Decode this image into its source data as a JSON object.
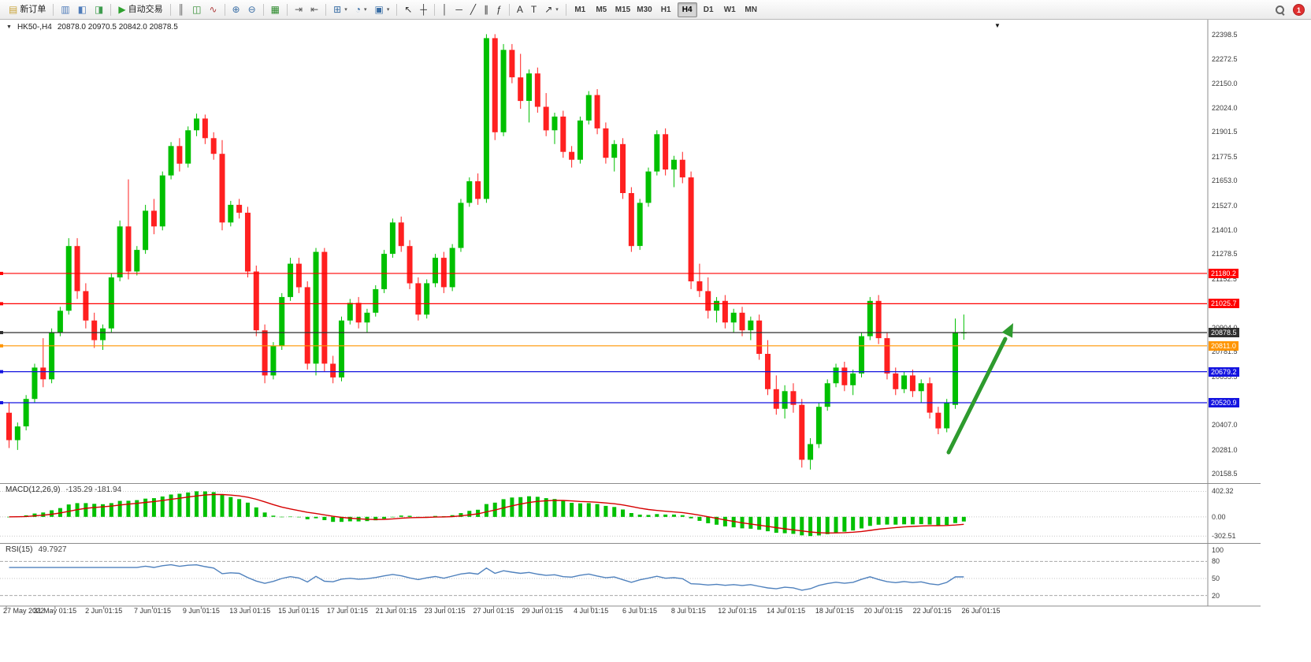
{
  "toolbar": {
    "groups": [
      [
        {
          "name": "new-order-button",
          "label": "新订单",
          "glyph": "▤",
          "color": "#caa53d"
        }
      ],
      [
        {
          "name": "market-watch-icon",
          "glyph": "▥",
          "color": "#4f7cba"
        },
        {
          "name": "data-window-icon",
          "glyph": "◧",
          "color": "#4f7cba"
        },
        {
          "name": "navigator-icon",
          "glyph": "◨",
          "color": "#3f9c4f"
        }
      ],
      [
        {
          "name": "auto-trading-button",
          "label": "自动交易",
          "glyph": "▶",
          "color": "#2ea12e"
        }
      ],
      [
        {
          "name": "bar-chart-icon",
          "glyph": "║",
          "color": "#555555"
        },
        {
          "name": "candlestick-chart-icon",
          "glyph": "◫",
          "color": "#2e8b2e"
        },
        {
          "name": "line-chart-icon",
          "glyph": "∿",
          "color": "#b04040"
        }
      ],
      [
        {
          "name": "zoom-in-icon",
          "glyph": "⊕",
          "color": "#3a6ea5"
        },
        {
          "name": "zoom-out-icon",
          "glyph": "⊖",
          "color": "#3a6ea5"
        }
      ],
      [
        {
          "name": "tile-windows-icon",
          "glyph": "▦",
          "color": "#2e8b2e"
        }
      ],
      [
        {
          "name": "auto-scroll-icon",
          "glyph": "⇥",
          "color": "#555555"
        },
        {
          "name": "chart-shift-icon",
          "glyph": "⇤",
          "color": "#555555"
        }
      ],
      [
        {
          "name": "new-chart-icon",
          "glyph": "⊞",
          "color": "#3a6ea5",
          "caret": true
        },
        {
          "name": "period-icon",
          "glyph": "◔",
          "color": "#3a6ea5",
          "caret": true
        },
        {
          "name": "template-icon",
          "glyph": "▣",
          "color": "#3a6ea5",
          "caret": true
        }
      ],
      [
        {
          "name": "cursor-icon",
          "glyph": "↖",
          "color": "#333333"
        },
        {
          "name": "crosshair-icon",
          "glyph": "┼",
          "color": "#333333"
        }
      ],
      [
        {
          "name": "vertical-line-icon",
          "glyph": "│",
          "color": "#333333"
        },
        {
          "name": "horizontal-line-icon",
          "glyph": "─",
          "color": "#333333"
        },
        {
          "name": "trendline-icon",
          "glyph": "╱",
          "color": "#333333"
        },
        {
          "name": "channel-icon",
          "glyph": "∥",
          "color": "#333333"
        },
        {
          "name": "fibonacci-icon",
          "glyph": "ƒ",
          "color": "#333333"
        }
      ],
      [
        {
          "name": "text-icon",
          "glyph": "A",
          "color": "#333333"
        },
        {
          "name": "label-icon",
          "glyph": "T",
          "color": "#333333"
        },
        {
          "name": "arrows-icon",
          "glyph": "↗",
          "color": "#333333",
          "caret": true
        }
      ]
    ],
    "timeframes": [
      "M1",
      "M5",
      "M15",
      "M30",
      "H1",
      "H4",
      "D1",
      "W1",
      "MN"
    ],
    "active_timeframe": "H4",
    "notification_count": "1"
  },
  "chart": {
    "title": "HK50-,H4",
    "ohlc_text": "20878.0 20970.5 20842.0 20878.5",
    "collapse_icon": "▼",
    "menu_icon": "▼",
    "colors": {
      "up": "#00c000",
      "down": "#ff2020",
      "macd_histogram": "#00c000",
      "macd_signal": "#d60000",
      "rsi_line": "#4f81bd",
      "arrow": "#2e9b2e",
      "axis_text": "#3a3a3a"
    },
    "price_lines": [
      {
        "value": 21180.2,
        "label": "21180.2",
        "color": "#ff0000",
        "type": "horizontal-line"
      },
      {
        "value": 21025.7,
        "label": "21025.7",
        "color": "#ff0000",
        "type": "horizontal-line"
      },
      {
        "value": 20878.5,
        "label": "20878.5",
        "color": "#2f2f2f",
        "type": "bid"
      },
      {
        "value": 20811.0,
        "label": "20811.0",
        "color": "#ff9500",
        "type": "horizontal-line"
      },
      {
        "value": 20679.2,
        "label": "20679.2",
        "color": "#1414e0",
        "type": "horizontal-line"
      },
      {
        "value": 20520.9,
        "label": "20520.9",
        "color": "#1414e0",
        "type": "horizontal-line"
      }
    ],
    "price_axis_labels": [
      "22398.5",
      "22272.5",
      "22150.0",
      "22024.0",
      "21901.5",
      "21775.5",
      "21653.0",
      "21527.0",
      "21401.0",
      "21278.5",
      "21152.5",
      "20904.0",
      "20781.5",
      "20655.5",
      "20407.0",
      "20281.0",
      "20158.5"
    ],
    "time_axis_labels": [
      "27 May 2022",
      "31 May 01:15",
      "2 Jun 01:15",
      "7 Jun 01:15",
      "9 Jun 01:15",
      "13 Jun 01:15",
      "15 Jun 01:15",
      "17 Jun 01:15",
      "21 Jun 01:15",
      "23 Jun 01:15",
      "27 Jun 01:15",
      "29 Jun 01:15",
      "4 Jul 01:15",
      "6 Jul 01:15",
      "8 Jul 01:15",
      "12 Jul 01:15",
      "14 Jul 01:15",
      "18 Jul 01:15",
      "20 Jul 01:15",
      "22 Jul 01:15",
      "26 Jul 01:15"
    ]
  },
  "macd_panel": {
    "title": "MACD(12,26,9)",
    "values": "-135.29 -181.94",
    "axis_labels": [
      "402.32",
      "0.00",
      "-302.51"
    ]
  },
  "rsi_panel": {
    "title": "RSI(15)",
    "value": "49.7927",
    "axis_labels": [
      "100",
      "80",
      "50",
      "20"
    ],
    "levels": [
      80,
      50,
      20
    ]
  },
  "chart_data": {
    "type": "candlestick",
    "symbol": "HK50-",
    "timeframe": "H4",
    "current_bar": {
      "open": 20878.0,
      "high": 20970.5,
      "low": 20842.0,
      "close": 20878.5
    },
    "visible_price_range": [
      20158.5,
      22398.5
    ],
    "y_ticks": [
      22398.5,
      22272.5,
      22150.0,
      22024.0,
      21901.5,
      21775.5,
      21653.0,
      21527.0,
      21401.0,
      21278.5,
      21152.5,
      20904.0,
      20781.5,
      20655.5,
      20407.0,
      20281.0,
      20158.5
    ],
    "x_labels": [
      "27 May 2022",
      "31 May 01:15",
      "2 Jun 01:15",
      "7 Jun 01:15",
      "9 Jun 01:15",
      "13 Jun 01:15",
      "15 Jun 01:15",
      "17 Jun 01:15",
      "21 Jun 01:15",
      "23 Jun 01:15",
      "27 Jun 01:15",
      "29 Jun 01:15",
      "4 Jul 01:15",
      "6 Jul 01:15",
      "8 Jul 01:15",
      "12 Jul 01:15",
      "14 Jul 01:15",
      "18 Jul 01:15",
      "20 Jul 01:15",
      "22 Jul 01:15",
      "26 Jul 01:15"
    ],
    "horizontal_lines": [
      21180.2,
      21025.7,
      20878.5,
      20811.0,
      20679.2,
      20520.9
    ],
    "indicators": [
      {
        "name": "MACD",
        "params": [
          12,
          26,
          9
        ],
        "values": [
          -135.29,
          -181.94
        ],
        "scale": [
          -302.51,
          402.32
        ]
      },
      {
        "name": "RSI",
        "params": [
          15
        ],
        "value": 49.7927,
        "levels": [
          80,
          50,
          20
        ]
      }
    ],
    "annotations": [
      {
        "type": "arrow",
        "direction": "up-right",
        "color": "#2e9b2e"
      }
    ],
    "candles": [
      [
        20470,
        20520,
        20290,
        20330
      ],
      [
        20330,
        20420,
        20280,
        20400
      ],
      [
        20400,
        20560,
        20380,
        20540
      ],
      [
        20540,
        20720,
        20520,
        20700
      ],
      [
        20700,
        20850,
        20600,
        20640
      ],
      [
        20640,
        20900,
        20620,
        20880
      ],
      [
        20880,
        21010,
        20860,
        20990
      ],
      [
        20990,
        21360,
        20970,
        21320
      ],
      [
        21320,
        21360,
        21050,
        21090
      ],
      [
        21090,
        21130,
        20900,
        20940
      ],
      [
        20940,
        20980,
        20800,
        20840
      ],
      [
        20840,
        20920,
        20790,
        20900
      ],
      [
        20900,
        21180,
        20880,
        21160
      ],
      [
        21160,
        21450,
        21140,
        21420
      ],
      [
        21420,
        21660,
        21150,
        21190
      ],
      [
        21190,
        21320,
        21170,
        21300
      ],
      [
        21300,
        21530,
        21280,
        21500
      ],
      [
        21500,
        21560,
        21380,
        21420
      ],
      [
        21420,
        21700,
        21400,
        21680
      ],
      [
        21680,
        21850,
        21660,
        21830
      ],
      [
        21830,
        21870,
        21700,
        21740
      ],
      [
        21740,
        21930,
        21720,
        21910
      ],
      [
        21910,
        21995,
        21880,
        21970
      ],
      [
        21970,
        21990,
        21840,
        21870
      ],
      [
        21870,
        21900,
        21760,
        21790
      ],
      [
        21790,
        21860,
        21400,
        21440
      ],
      [
        21440,
        21550,
        21420,
        21530
      ],
      [
        21530,
        21560,
        21460,
        21490
      ],
      [
        21490,
        21520,
        21160,
        21190
      ],
      [
        21190,
        21220,
        20860,
        20890
      ],
      [
        20890,
        20920,
        20620,
        20660
      ],
      [
        20660,
        20830,
        20640,
        20810
      ],
      [
        20810,
        21080,
        20790,
        21060
      ],
      [
        21060,
        21260,
        21040,
        21230
      ],
      [
        21230,
        21260,
        21080,
        21110
      ],
      [
        21110,
        21140,
        20690,
        20720
      ],
      [
        20720,
        21310,
        20660,
        21290
      ],
      [
        21290,
        21310,
        20680,
        20720
      ],
      [
        20720,
        20760,
        20620,
        20650
      ],
      [
        20650,
        20960,
        20630,
        20940
      ],
      [
        20940,
        21050,
        20920,
        21030
      ],
      [
        21030,
        21060,
        20900,
        20930
      ],
      [
        20930,
        21000,
        20880,
        20980
      ],
      [
        20980,
        21120,
        20960,
        21100
      ],
      [
        21100,
        21300,
        21080,
        21280
      ],
      [
        21280,
        21460,
        21260,
        21440
      ],
      [
        21440,
        21470,
        21290,
        21320
      ],
      [
        21320,
        21350,
        21100,
        21130
      ],
      [
        21130,
        21160,
        20940,
        20970
      ],
      [
        20970,
        21150,
        20950,
        21130
      ],
      [
        21130,
        21280,
        21110,
        21260
      ],
      [
        21260,
        21290,
        21080,
        21110
      ],
      [
        21110,
        21330,
        21090,
        21310
      ],
      [
        21310,
        21560,
        21290,
        21540
      ],
      [
        21540,
        21670,
        21520,
        21650
      ],
      [
        21650,
        21690,
        21530,
        21560
      ],
      [
        21560,
        22400,
        21540,
        22380
      ],
      [
        22380,
        22400,
        21860,
        21900
      ],
      [
        21900,
        22350,
        21880,
        22320
      ],
      [
        22320,
        22350,
        22150,
        22180
      ],
      [
        22180,
        22300,
        22020,
        22060
      ],
      [
        22060,
        22220,
        21950,
        22200
      ],
      [
        22200,
        22230,
        22000,
        22030
      ],
      [
        22030,
        22100,
        21880,
        21910
      ],
      [
        21910,
        22000,
        21840,
        21980
      ],
      [
        21980,
        22010,
        21770,
        21800
      ],
      [
        21800,
        21830,
        21720,
        21760
      ],
      [
        21760,
        21980,
        21740,
        21960
      ],
      [
        21960,
        22110,
        21940,
        22090
      ],
      [
        22090,
        22120,
        21890,
        21920
      ],
      [
        21920,
        21950,
        21740,
        21770
      ],
      [
        21770,
        21860,
        21700,
        21840
      ],
      [
        21840,
        21870,
        21560,
        21590
      ],
      [
        21590,
        21620,
        21290,
        21320
      ],
      [
        21320,
        21560,
        21300,
        21540
      ],
      [
        21540,
        21720,
        21520,
        21700
      ],
      [
        21700,
        21910,
        21680,
        21890
      ],
      [
        21890,
        21920,
        21680,
        21710
      ],
      [
        21710,
        21780,
        21620,
        21760
      ],
      [
        21760,
        21800,
        21640,
        21670
      ],
      [
        21670,
        21700,
        21100,
        21140
      ],
      [
        21140,
        21230,
        21060,
        21090
      ],
      [
        21090,
        21160,
        20950,
        20990
      ],
      [
        20990,
        21060,
        20930,
        21040
      ],
      [
        21040,
        21070,
        20900,
        20930
      ],
      [
        20930,
        21000,
        20880,
        20980
      ],
      [
        20980,
        21010,
        20860,
        20890
      ],
      [
        20890,
        20960,
        20840,
        20940
      ],
      [
        20940,
        20970,
        20740,
        20770
      ],
      [
        20770,
        20840,
        20560,
        20590
      ],
      [
        20590,
        20660,
        20460,
        20490
      ],
      [
        20490,
        20610,
        20440,
        20580
      ],
      [
        20580,
        20620,
        20470,
        20510
      ],
      [
        20510,
        20540,
        20190,
        20230
      ],
      [
        20230,
        20340,
        20180,
        20310
      ],
      [
        20310,
        20520,
        20290,
        20500
      ],
      [
        20500,
        20640,
        20480,
        20620
      ],
      [
        20620,
        20720,
        20600,
        20700
      ],
      [
        20700,
        20730,
        20580,
        20610
      ],
      [
        20610,
        20690,
        20560,
        20670
      ],
      [
        20670,
        20880,
        20650,
        20860
      ],
      [
        20860,
        21060,
        20840,
        21040
      ],
      [
        21040,
        21070,
        20820,
        20850
      ],
      [
        20850,
        20880,
        20640,
        20670
      ],
      [
        20670,
        20700,
        20560,
        20590
      ],
      [
        20590,
        20680,
        20570,
        20660
      ],
      [
        20660,
        20690,
        20550,
        20580
      ],
      [
        20580,
        20640,
        20520,
        20620
      ],
      [
        20620,
        20650,
        20440,
        20470
      ],
      [
        20470,
        20500,
        20360,
        20390
      ],
      [
        20390,
        20540,
        20370,
        20520
      ],
      [
        20510,
        20950,
        20490,
        20880
      ],
      [
        20878,
        20970.5,
        20842,
        20878.5
      ]
    ]
  }
}
